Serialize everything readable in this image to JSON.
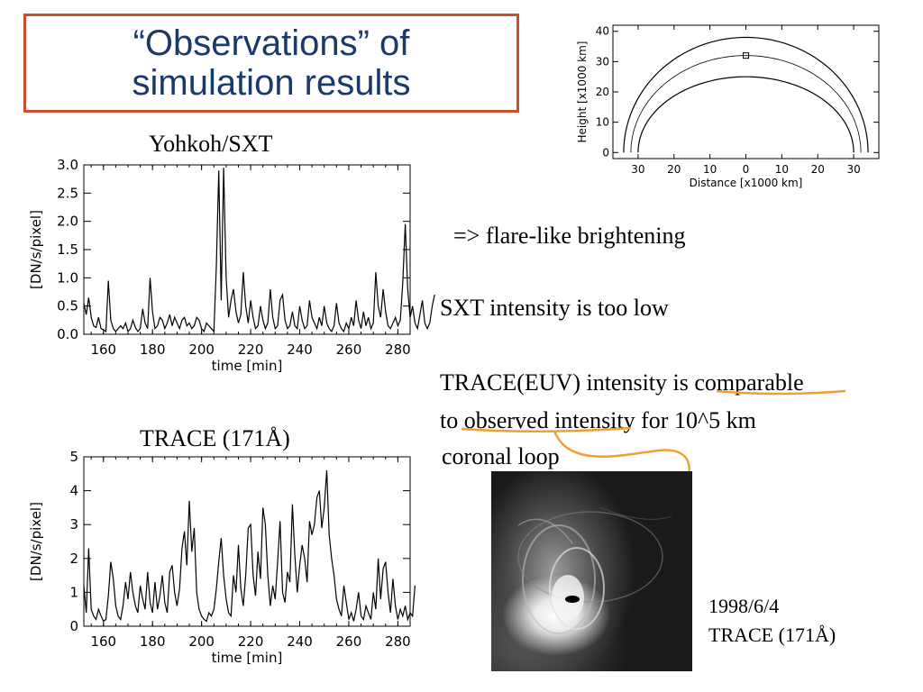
{
  "title": {
    "line1": "“Observations” of",
    "line2": "simulation results"
  },
  "texts": {
    "flare": "=> flare-like brightening",
    "sxt_low": "SXT intensity is too low",
    "trace_line1": "TRACE(EUV) intensity is comparable",
    "trace_line2": "to observed intensity for 10^5 km",
    "trace_line3": " coronal loop",
    "photo_date": "1998/6/4",
    "photo_label": "TRACE (171Å)"
  },
  "colors": {
    "title_border": "#c8502a",
    "title_text": "#1a3a6b",
    "arrow": "#f0a030"
  },
  "chart_data": [
    {
      "type": "line",
      "caption": "Yohkoh/SXT",
      "xlabel": "time [min]",
      "ylabel": "[DN/s/pixel]",
      "xlim": [
        152,
        285
      ],
      "ylim": [
        0,
        3.0
      ],
      "xticks": [
        160,
        180,
        200,
        220,
        240,
        260,
        280
      ],
      "yticks": [
        "0.0",
        "0.5",
        "1.0",
        "1.5",
        "2.0",
        "2.5",
        "3.0"
      ],
      "x_start": 152,
      "x_step": 1,
      "values": [
        0.55,
        0.35,
        0.65,
        0.3,
        0.15,
        0.12,
        0.3,
        0.1,
        0.08,
        0.05,
        0.95,
        0.25,
        0.1,
        0.05,
        0.1,
        0.15,
        0.1,
        0.2,
        0.05,
        0.1,
        0.25,
        0.12,
        0.05,
        0.1,
        0.45,
        0.2,
        0.1,
        1.0,
        0.4,
        0.1,
        0.15,
        0.3,
        0.25,
        0.1,
        0.2,
        0.35,
        0.15,
        0.3,
        0.2,
        0.1,
        0.25,
        0.3,
        0.15,
        0.2,
        0.1,
        0.15,
        0.3,
        0.25,
        0.1,
        0.05,
        0.2,
        0.15,
        0.1,
        0.05,
        1.2,
        2.9,
        0.6,
        2.95,
        1.0,
        0.3,
        0.6,
        0.8,
        0.4,
        0.2,
        0.35,
        1.1,
        0.5,
        0.2,
        0.6,
        0.3,
        0.1,
        0.15,
        0.5,
        0.25,
        0.1,
        0.2,
        0.8,
        0.3,
        0.1,
        0.15,
        0.6,
        0.7,
        0.25,
        0.1,
        0.15,
        0.4,
        0.15,
        0.1,
        0.5,
        0.25,
        0.1,
        0.15,
        0.6,
        0.3,
        0.2,
        0.1,
        0.3,
        0.15,
        0.5,
        0.2,
        0.1,
        0.05,
        0.15,
        0.55,
        0.2,
        0.1,
        0.05,
        0.2,
        0.1,
        0.3,
        0.15,
        0.6,
        0.25,
        0.1,
        0.4,
        0.15,
        0.3,
        0.1,
        0.2,
        1.1,
        0.5,
        0.3,
        0.8,
        0.4,
        0.15,
        0.1,
        0.2,
        0.3,
        0.15,
        0.25,
        0.9,
        1.95,
        0.8,
        0.3,
        0.5,
        0.2,
        0.1,
        0.35,
        0.6,
        0.2,
        0.1,
        0.2,
        0.5,
        0.7
      ]
    },
    {
      "type": "line",
      "caption": "TRACE (171Å)",
      "xlabel": "time [min]",
      "ylabel": "[DN/s/pixel]",
      "xlim": [
        152,
        285
      ],
      "ylim": [
        0,
        5
      ],
      "xticks": [
        160,
        180,
        200,
        220,
        240,
        260,
        280
      ],
      "yticks": [
        "0",
        "1",
        "2",
        "3",
        "4",
        "5"
      ],
      "x_start": 152,
      "x_step": 1,
      "values": [
        1.2,
        0.4,
        2.3,
        0.5,
        0.3,
        0.2,
        0.5,
        0.3,
        0.15,
        0.2,
        0.9,
        1.9,
        1.4,
        0.6,
        0.3,
        0.2,
        0.6,
        1.3,
        0.8,
        1.6,
        1.0,
        0.6,
        0.4,
        1.2,
        0.8,
        0.5,
        1.6,
        0.7,
        0.4,
        1.3,
        0.5,
        0.9,
        1.5,
        0.7,
        0.4,
        1.6,
        1.8,
        1.0,
        0.6,
        1.1,
        2.3,
        2.8,
        1.8,
        3.7,
        2.2,
        2.9,
        1.0,
        0.5,
        0.3,
        0.2,
        0.15,
        0.4,
        0.3,
        0.5,
        1.1,
        1.9,
        2.6,
        1.5,
        0.8,
        0.4,
        0.3,
        1.5,
        1.0,
        2.4,
        1.1,
        0.6,
        1.5,
        2.9,
        3.0,
        1.5,
        0.9,
        2.2,
        1.4,
        3.5,
        3.0,
        1.5,
        0.6,
        1.2,
        0.8,
        1.9,
        3.1,
        1.0,
        0.7,
        1.6,
        1.3,
        3.6,
        2.1,
        1.0,
        1.8,
        2.4,
        2.0,
        1.3,
        3.1,
        2.7,
        3.0,
        3.8,
        4.0,
        2.9,
        3.5,
        4.6,
        2.7,
        2.0,
        1.5,
        0.8,
        0.5,
        0.3,
        1.2,
        0.7,
        0.2,
        0.4,
        0.15,
        0.5,
        1.0,
        0.3,
        0.2,
        0.6,
        0.4,
        0.2,
        1.0,
        0.5,
        2.0,
        0.8,
        1.7,
        1.9,
        1.0,
        0.4,
        1.4,
        0.6,
        0.2,
        0.5,
        0.3,
        0.6,
        0.2,
        0.4,
        0.3,
        1.2
      ]
    },
    {
      "type": "line",
      "caption": "",
      "xlabel": "Distance [x1000 km]",
      "ylabel": "Height [x1000 km]",
      "xlim": [
        -37,
        37
      ],
      "ylim": [
        -2,
        42
      ],
      "xticks": [
        -30,
        -20,
        -10,
        0,
        10,
        20,
        30
      ],
      "xtick_labels": [
        "30",
        "20",
        "10",
        "0",
        "10",
        "20",
        "30"
      ],
      "yticks": [
        0,
        10,
        20,
        30,
        40
      ],
      "series": [
        {
          "semi_major": 34,
          "semi_minor": 38
        },
        {
          "semi_major": 32,
          "semi_minor": 32
        },
        {
          "semi_major": 30,
          "semi_minor": 25
        }
      ],
      "marker": {
        "x": 0,
        "y": 32
      }
    }
  ]
}
